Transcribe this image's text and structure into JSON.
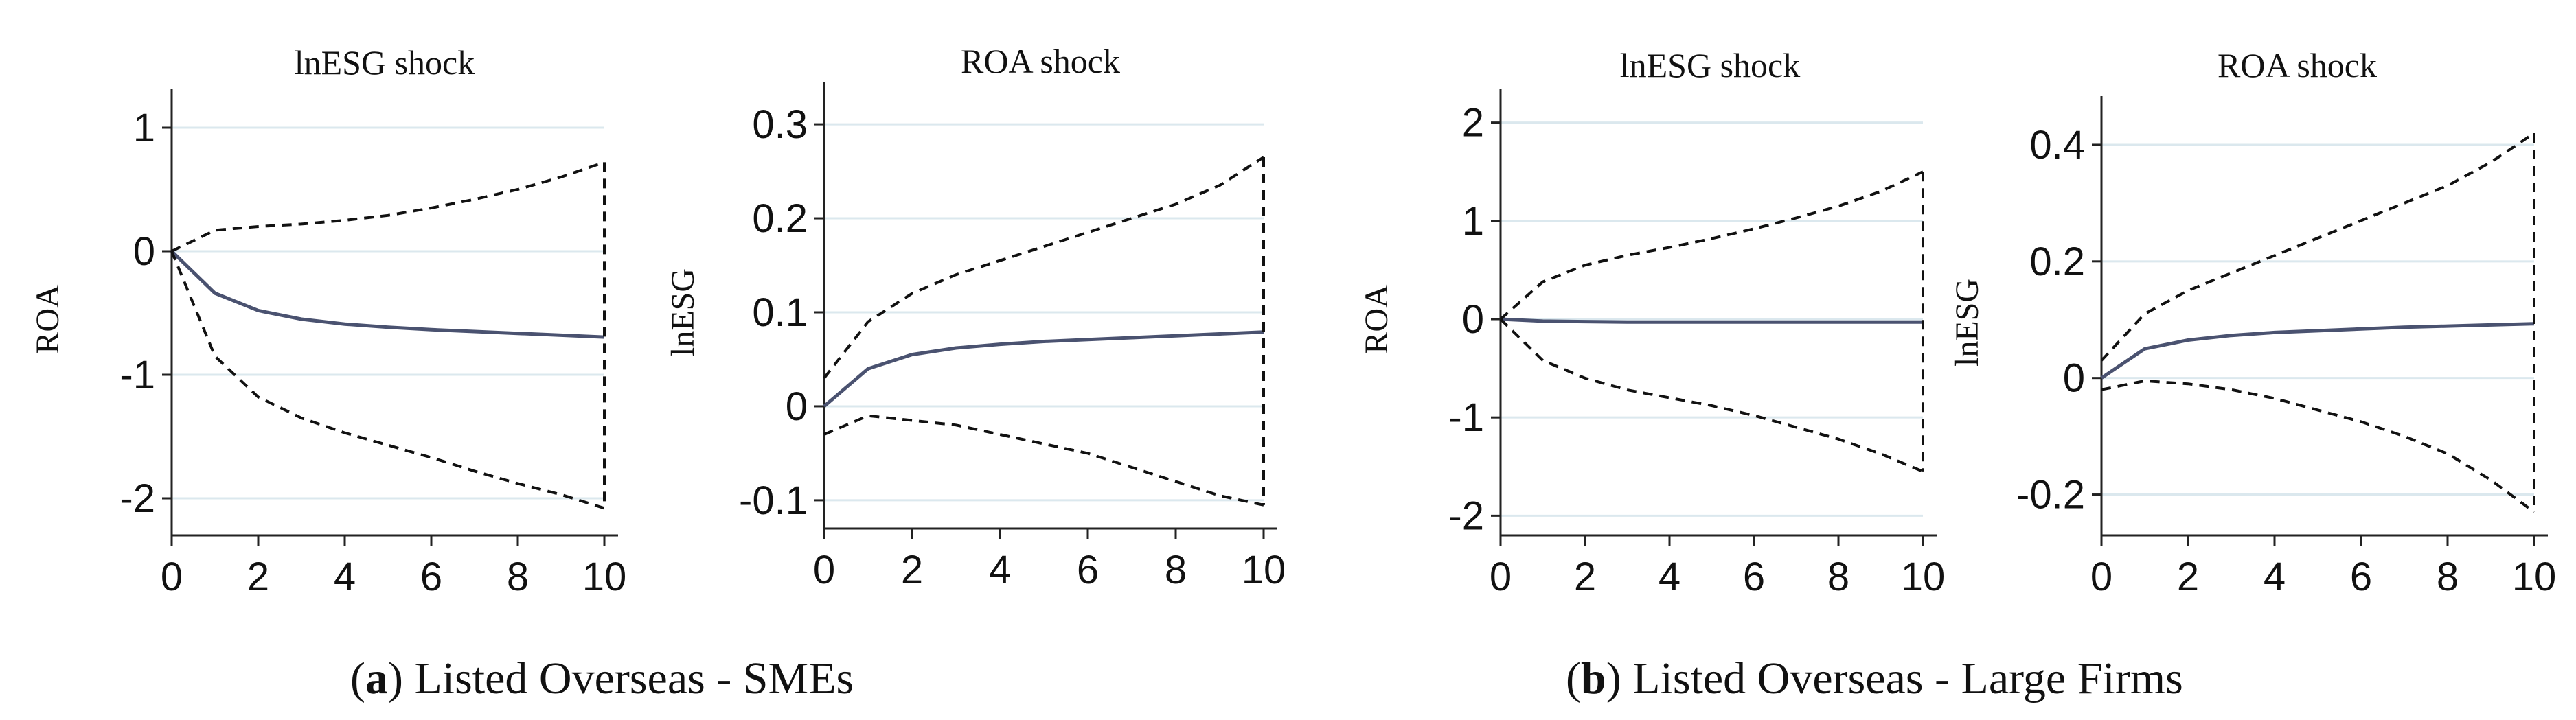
{
  "captions": {
    "a": {
      "paren_open": "(",
      "letter": "a",
      "text": ") Listed Overseas - SMEs"
    },
    "b": {
      "paren_open": "(",
      "letter": "b",
      "text": ") Listed Overseas - Large Firms"
    }
  },
  "colors": {
    "irf_line": "#4a5270",
    "ci_line": "#111111",
    "grid": "#dbe8ee",
    "axis": "#222222"
  },
  "chart_data": [
    {
      "type": "line",
      "panel": "a",
      "title": "lnESG shock",
      "xlabel": "",
      "ylabel": "ROA",
      "xlim": [
        0,
        10
      ],
      "ylim": [
        -2.3,
        1.2
      ],
      "x_ticks": [
        0,
        2,
        4,
        6,
        8,
        10
      ],
      "x_tick_labels": [
        "0",
        "2",
        "4",
        "6",
        "8",
        "10"
      ],
      "y_ticks": [
        1,
        0,
        -1,
        -2
      ],
      "y_tick_labels": [
        "1",
        "0",
        "-1",
        "-2"
      ],
      "x": [
        0,
        1,
        2,
        3,
        4,
        5,
        6,
        7,
        8,
        9,
        10
      ],
      "series": [
        {
          "style": "solid",
          "values": [
            0,
            -0.34,
            -0.48,
            -0.55,
            -0.59,
            -0.615,
            -0.635,
            -0.65,
            -0.665,
            -0.68,
            -0.695
          ]
        },
        {
          "style": "dashed",
          "values": [
            0.0,
            0.17,
            0.2,
            0.22,
            0.25,
            0.29,
            0.35,
            0.42,
            0.5,
            0.6,
            0.72
          ]
        },
        {
          "style": "dashed",
          "values": [
            0.0,
            -0.85,
            -1.18,
            -1.35,
            -1.47,
            -1.57,
            -1.67,
            -1.78,
            -1.88,
            -1.97,
            -2.08
          ]
        }
      ]
    },
    {
      "type": "line",
      "panel": "a",
      "title": "ROA shock",
      "xlabel": "",
      "ylabel": "lnESG",
      "xlim": [
        0,
        10
      ],
      "ylim": [
        -0.13,
        0.33
      ],
      "x_ticks": [
        0,
        2,
        4,
        6,
        8,
        10
      ],
      "x_tick_labels": [
        "0",
        "2",
        "4",
        "6",
        "8",
        "10"
      ],
      "y_ticks": [
        0.3,
        0.2,
        0.1,
        0,
        -0.1
      ],
      "y_tick_labels": [
        "0.3",
        "0.2",
        "0.1",
        "0",
        "-0.1"
      ],
      "x": [
        0,
        1,
        2,
        3,
        4,
        5,
        6,
        7,
        8,
        9,
        10
      ],
      "series": [
        {
          "style": "solid",
          "values": [
            0,
            0.04,
            0.055,
            0.062,
            0.066,
            0.069,
            0.071,
            0.073,
            0.075,
            0.077,
            0.079
          ]
        },
        {
          "style": "dashed",
          "values": [
            0.03,
            0.09,
            0.12,
            0.14,
            0.155,
            0.17,
            0.185,
            0.2,
            0.215,
            0.235,
            0.265
          ]
        },
        {
          "style": "dashed",
          "values": [
            -0.03,
            -0.01,
            -0.015,
            -0.02,
            -0.03,
            -0.04,
            -0.05,
            -0.065,
            -0.08,
            -0.095,
            -0.105
          ]
        }
      ]
    },
    {
      "type": "line",
      "panel": "b",
      "title": "lnESG shock",
      "xlabel": "",
      "ylabel": "ROA",
      "xlim": [
        0,
        10
      ],
      "ylim": [
        -2.2,
        2.2
      ],
      "x_ticks": [
        0,
        2,
        4,
        6,
        8,
        10
      ],
      "x_tick_labels": [
        "0",
        "2",
        "4",
        "6",
        "8",
        "10"
      ],
      "y_ticks": [
        2,
        1,
        0,
        -1,
        -2
      ],
      "y_tick_labels": [
        "2",
        "1",
        "0",
        "-1",
        "-2"
      ],
      "x": [
        0,
        1,
        2,
        3,
        4,
        5,
        6,
        7,
        8,
        9,
        10
      ],
      "series": [
        {
          "style": "solid",
          "values": [
            0,
            -0.02,
            -0.025,
            -0.03,
            -0.03,
            -0.03,
            -0.03,
            -0.03,
            -0.03,
            -0.03,
            -0.03
          ]
        },
        {
          "style": "dashed",
          "values": [
            0.0,
            0.38,
            0.55,
            0.65,
            0.73,
            0.82,
            0.92,
            1.03,
            1.15,
            1.3,
            1.5
          ]
        },
        {
          "style": "dashed",
          "values": [
            0.0,
            -0.42,
            -0.6,
            -0.72,
            -0.8,
            -0.88,
            -0.98,
            -1.1,
            -1.22,
            -1.37,
            -1.55
          ]
        }
      ]
    },
    {
      "type": "line",
      "panel": "b",
      "title": "ROA shock",
      "xlabel": "",
      "ylabel": "lnESG",
      "xlim": [
        0,
        10
      ],
      "ylim": [
        -0.27,
        0.46
      ],
      "x_ticks": [
        0,
        2,
        4,
        6,
        8,
        10
      ],
      "x_tick_labels": [
        "0",
        "2",
        "4",
        "6",
        "8",
        "10"
      ],
      "y_ticks": [
        0.4,
        0.2,
        0,
        -0.2
      ],
      "y_tick_labels": [
        "0.4",
        "0.2",
        "0",
        "-0.2"
      ],
      "x": [
        0,
        1,
        2,
        3,
        4,
        5,
        6,
        7,
        8,
        9,
        10
      ],
      "series": [
        {
          "style": "solid",
          "values": [
            0,
            0.05,
            0.065,
            0.073,
            0.078,
            0.081,
            0.084,
            0.087,
            0.089,
            0.091,
            0.093
          ]
        },
        {
          "style": "dashed",
          "values": [
            0.03,
            0.11,
            0.15,
            0.18,
            0.21,
            0.24,
            0.27,
            0.3,
            0.33,
            0.37,
            0.42
          ]
        },
        {
          "style": "dashed",
          "values": [
            -0.02,
            -0.005,
            -0.01,
            -0.02,
            -0.035,
            -0.055,
            -0.075,
            -0.1,
            -0.13,
            -0.175,
            -0.23
          ]
        }
      ]
    }
  ]
}
